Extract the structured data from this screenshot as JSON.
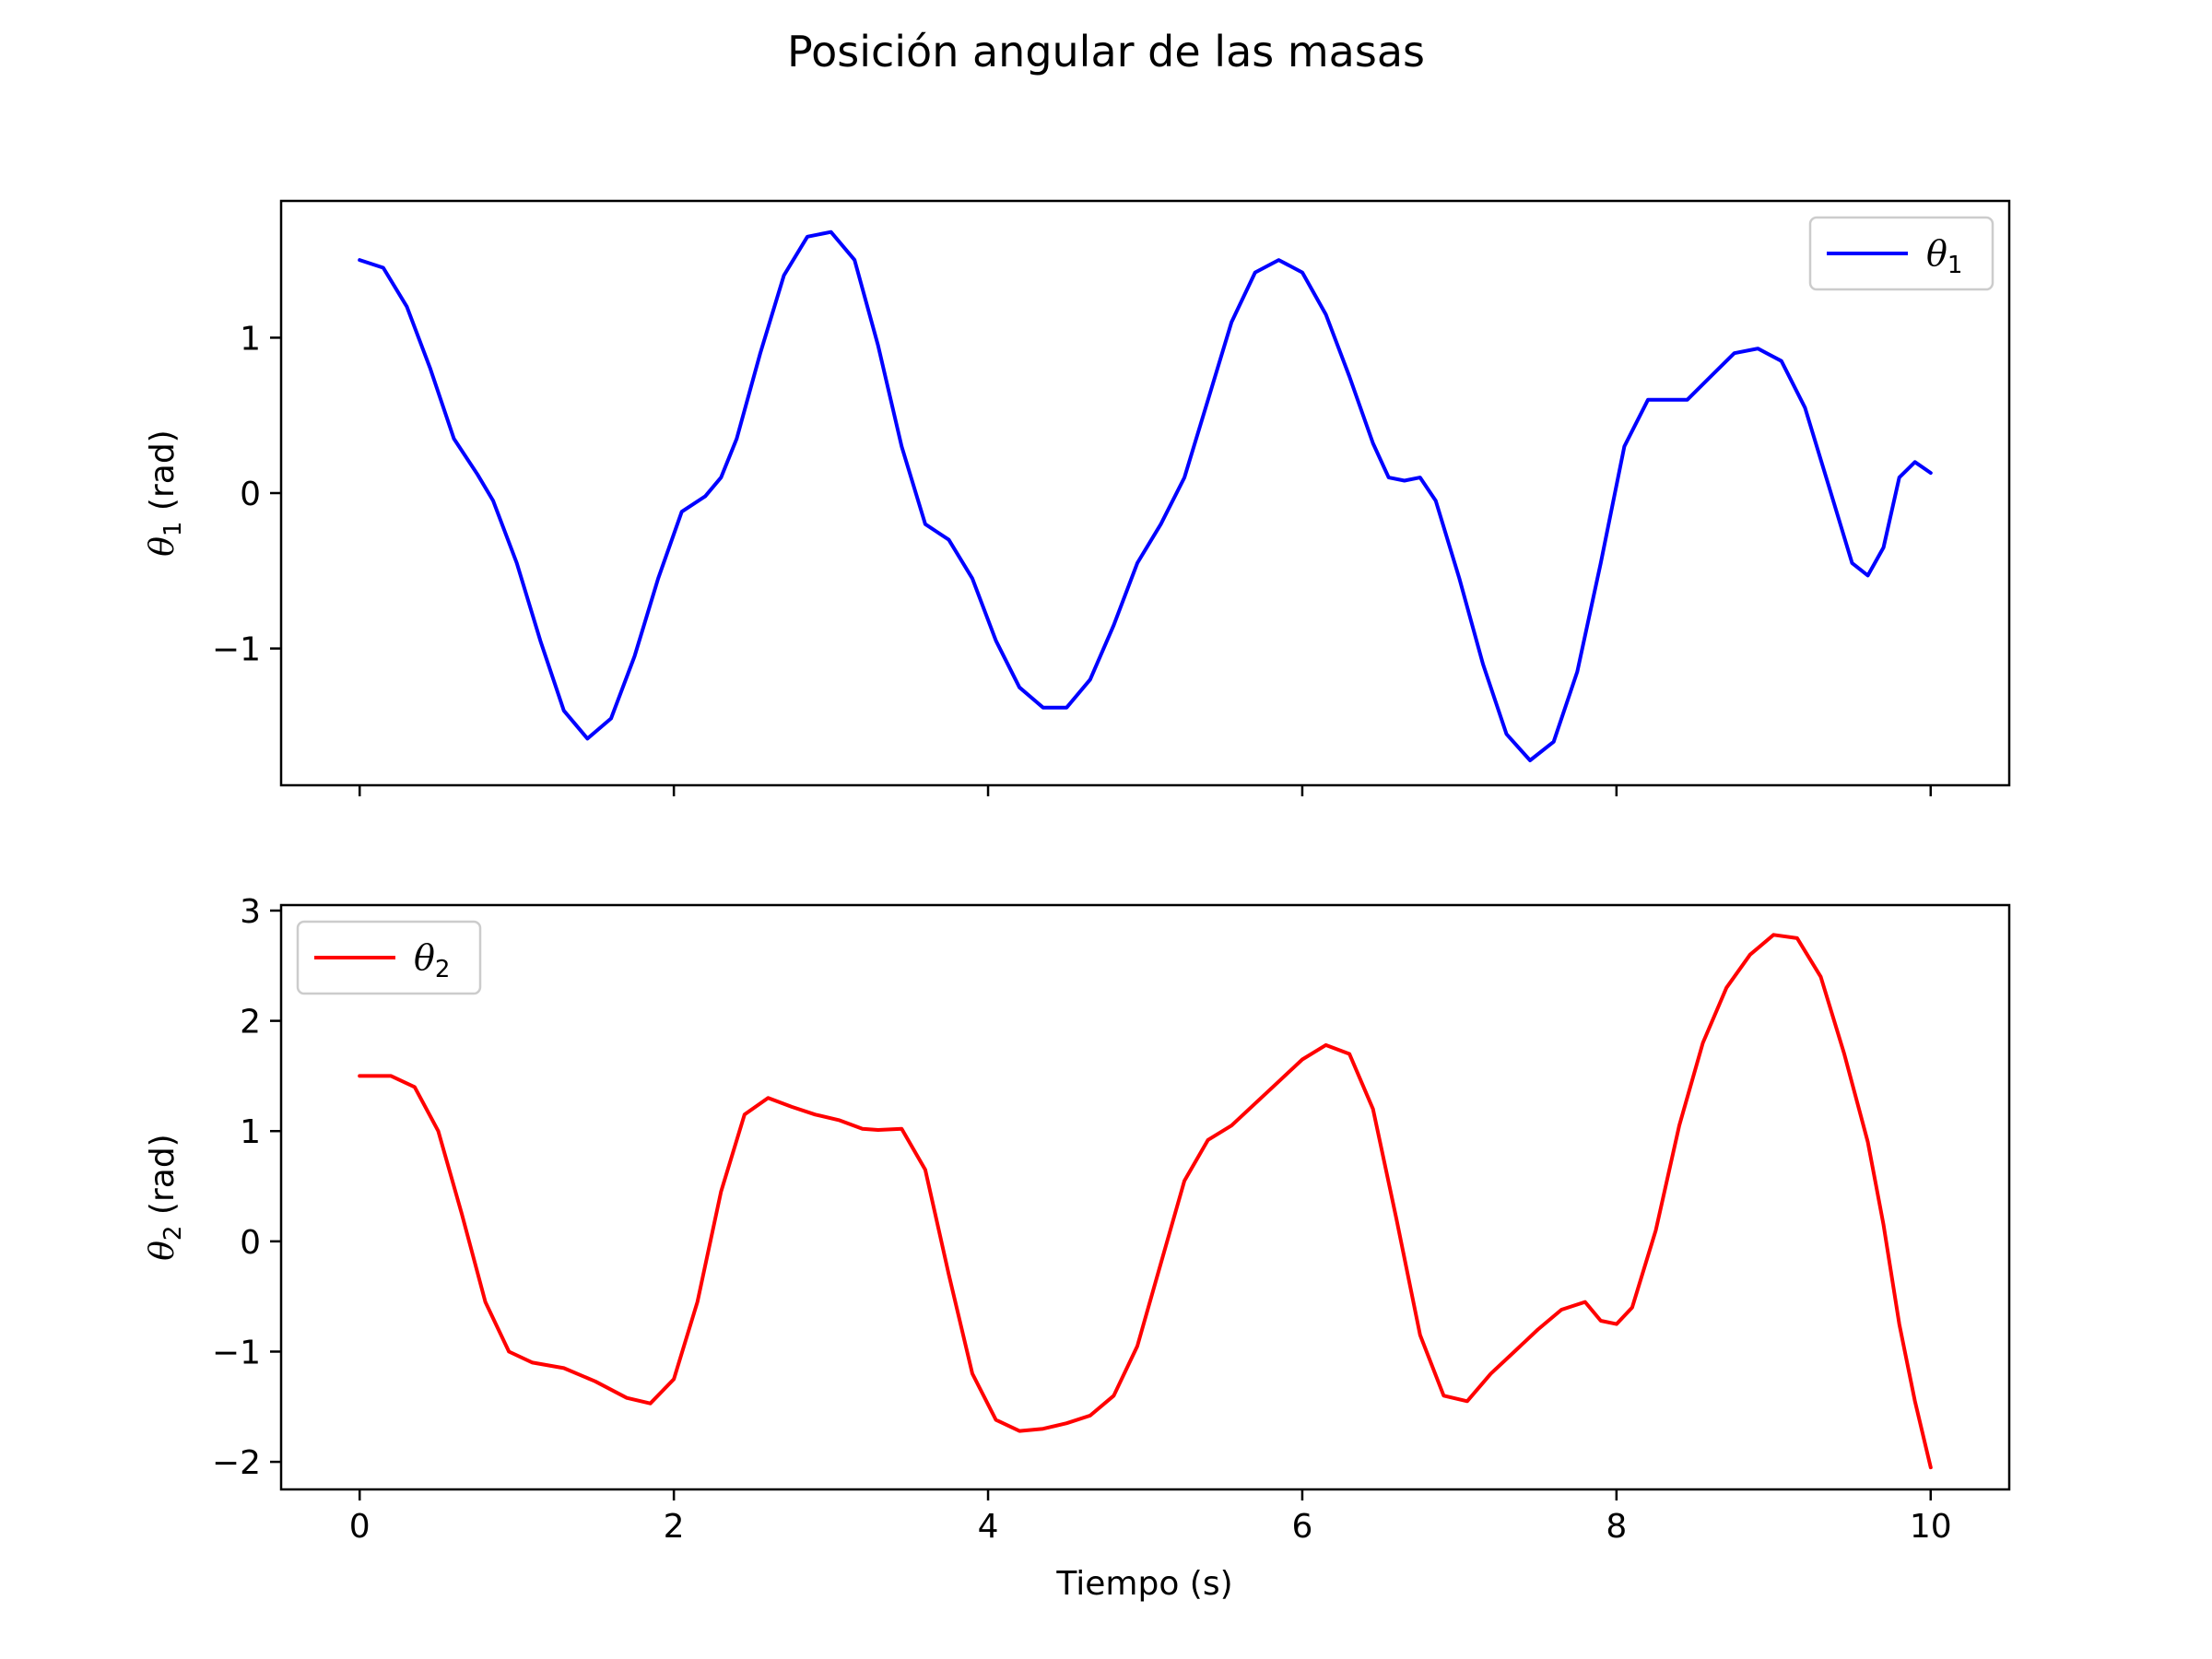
{
  "chart_data": {
    "type": "line",
    "title": "Posición angular de las masas",
    "xlabel": "Tiempo (s)",
    "xlim": [
      -0.5,
      10.5
    ],
    "xticks": [
      "0",
      "2",
      "4",
      "6",
      "8",
      "10"
    ],
    "xtick_values": [
      0,
      2,
      4,
      6,
      8,
      10
    ],
    "subplots": [
      {
        "ylabel_sym": "θ",
        "ylabel_sub": "1",
        "ylabel_unit": " (rad)",
        "ylim": [
          -1.88,
          1.88
        ],
        "yticks": [
          "−1",
          "0",
          "1"
        ],
        "ytick_values": [
          -1,
          0,
          1
        ],
        "legend": "top-right",
        "series": [
          {
            "name_sym": "θ",
            "name_sub": "1",
            "color": "#0000ff",
            "points": [
              [
                0,
                1.5
              ],
              [
                0.15,
                1.45
              ],
              [
                0.3,
                1.2
              ],
              [
                0.45,
                0.8
              ],
              [
                0.6,
                0.35
              ],
              [
                0.75,
                0.12
              ],
              [
                0.85,
                -0.05
              ],
              [
                1.0,
                -0.45
              ],
              [
                1.15,
                -0.95
              ],
              [
                1.3,
                -1.4
              ],
              [
                1.45,
                -1.58
              ],
              [
                1.6,
                -1.45
              ],
              [
                1.75,
                -1.05
              ],
              [
                1.9,
                -0.55
              ],
              [
                2.05,
                -0.12
              ],
              [
                2.2,
                -0.02
              ],
              [
                2.3,
                0.1
              ],
              [
                2.4,
                0.35
              ],
              [
                2.55,
                0.9
              ],
              [
                2.7,
                1.4
              ],
              [
                2.85,
                1.65
              ],
              [
                3.0,
                1.68
              ],
              [
                3.15,
                1.5
              ],
              [
                3.3,
                0.95
              ],
              [
                3.45,
                0.3
              ],
              [
                3.6,
                -0.2
              ],
              [
                3.75,
                -0.3
              ],
              [
                3.9,
                -0.55
              ],
              [
                4.05,
                -0.95
              ],
              [
                4.2,
                -1.25
              ],
              [
                4.35,
                -1.38
              ],
              [
                4.5,
                -1.38
              ],
              [
                4.65,
                -1.2
              ],
              [
                4.8,
                -0.85
              ],
              [
                4.95,
                -0.45
              ],
              [
                5.1,
                -0.2
              ],
              [
                5.25,
                0.1
              ],
              [
                5.4,
                0.6
              ],
              [
                5.55,
                1.1
              ],
              [
                5.7,
                1.42
              ],
              [
                5.85,
                1.5
              ],
              [
                6.0,
                1.42
              ],
              [
                6.15,
                1.15
              ],
              [
                6.3,
                0.75
              ],
              [
                6.45,
                0.32
              ],
              [
                6.55,
                0.1
              ],
              [
                6.65,
                0.08
              ],
              [
                6.75,
                0.1
              ],
              [
                6.85,
                -0.05
              ],
              [
                7.0,
                -0.55
              ],
              [
                7.15,
                -1.1
              ],
              [
                7.3,
                -1.55
              ],
              [
                7.45,
                -1.72
              ],
              [
                7.6,
                -1.6
              ],
              [
                7.75,
                -1.15
              ],
              [
                7.9,
                -0.45
              ],
              [
                8.05,
                0.3
              ],
              [
                8.2,
                0.6
              ],
              [
                8.35,
                0.6
              ],
              [
                8.45,
                0.6
              ],
              [
                8.6,
                0.75
              ],
              [
                8.75,
                0.9
              ],
              [
                8.9,
                0.93
              ],
              [
                9.05,
                0.85
              ],
              [
                9.2,
                0.55
              ],
              [
                9.35,
                0.05
              ],
              [
                9.5,
                -0.45
              ],
              [
                9.6,
                -0.53
              ],
              [
                9.7,
                -0.35
              ],
              [
                9.8,
                0.1
              ],
              [
                9.9,
                0.2
              ],
              [
                10.0,
                0.13
              ]
            ]
          }
        ]
      },
      {
        "ylabel_sym": "θ",
        "ylabel_sub": "2",
        "ylabel_unit": " (rad)",
        "ylim": [
          -2.25,
          3.05
        ],
        "yticks": [
          "−2",
          "−1",
          "0",
          "1",
          "2",
          "3"
        ],
        "ytick_values": [
          -2,
          -1,
          0,
          1,
          2,
          3
        ],
        "legend": "top-left",
        "series": [
          {
            "name_sym": "θ",
            "name_sub": "2",
            "color": "#ff0000",
            "points": [
              [
                0,
                1.5
              ],
              [
                0.2,
                1.5
              ],
              [
                0.35,
                1.4
              ],
              [
                0.5,
                1.0
              ],
              [
                0.65,
                0.25
              ],
              [
                0.8,
                -0.55
              ],
              [
                0.95,
                -1.0
              ],
              [
                1.1,
                -1.1
              ],
              [
                1.3,
                -1.15
              ],
              [
                1.5,
                -1.27
              ],
              [
                1.7,
                -1.42
              ],
              [
                1.85,
                -1.47
              ],
              [
                2.0,
                -1.25
              ],
              [
                2.15,
                -0.55
              ],
              [
                2.3,
                0.45
              ],
              [
                2.45,
                1.15
              ],
              [
                2.6,
                1.3
              ],
              [
                2.75,
                1.22
              ],
              [
                2.9,
                1.15
              ],
              [
                3.05,
                1.1
              ],
              [
                3.2,
                1.02
              ],
              [
                3.3,
                1.01
              ],
              [
                3.45,
                1.02
              ],
              [
                3.6,
                0.65
              ],
              [
                3.75,
                -0.3
              ],
              [
                3.9,
                -1.2
              ],
              [
                4.05,
                -1.62
              ],
              [
                4.2,
                -1.72
              ],
              [
                4.35,
                -1.7
              ],
              [
                4.5,
                -1.65
              ],
              [
                4.65,
                -1.58
              ],
              [
                4.8,
                -1.4
              ],
              [
                4.95,
                -0.95
              ],
              [
                5.1,
                -0.2
              ],
              [
                5.25,
                0.55
              ],
              [
                5.4,
                0.92
              ],
              [
                5.55,
                1.05
              ],
              [
                5.7,
                1.25
              ],
              [
                5.85,
                1.45
              ],
              [
                6.0,
                1.65
              ],
              [
                6.15,
                1.78
              ],
              [
                6.3,
                1.7
              ],
              [
                6.45,
                1.2
              ],
              [
                6.6,
                0.2
              ],
              [
                6.75,
                -0.85
              ],
              [
                6.9,
                -1.4
              ],
              [
                7.05,
                -1.45
              ],
              [
                7.2,
                -1.2
              ],
              [
                7.35,
                -1.0
              ],
              [
                7.5,
                -0.8
              ],
              [
                7.65,
                -0.62
              ],
              [
                7.8,
                -0.55
              ],
              [
                7.9,
                -0.72
              ],
              [
                8.0,
                -0.75
              ],
              [
                8.1,
                -0.6
              ],
              [
                8.25,
                0.1
              ],
              [
                8.4,
                1.05
              ],
              [
                8.55,
                1.8
              ],
              [
                8.7,
                2.3
              ],
              [
                8.85,
                2.6
              ],
              [
                9.0,
                2.78
              ],
              [
                9.15,
                2.75
              ],
              [
                9.3,
                2.4
              ],
              [
                9.45,
                1.7
              ],
              [
                9.6,
                0.9
              ],
              [
                9.7,
                0.15
              ],
              [
                9.8,
                -0.75
              ],
              [
                9.9,
                -1.45
              ],
              [
                10.0,
                -2.05
              ]
            ]
          }
        ]
      }
    ]
  }
}
